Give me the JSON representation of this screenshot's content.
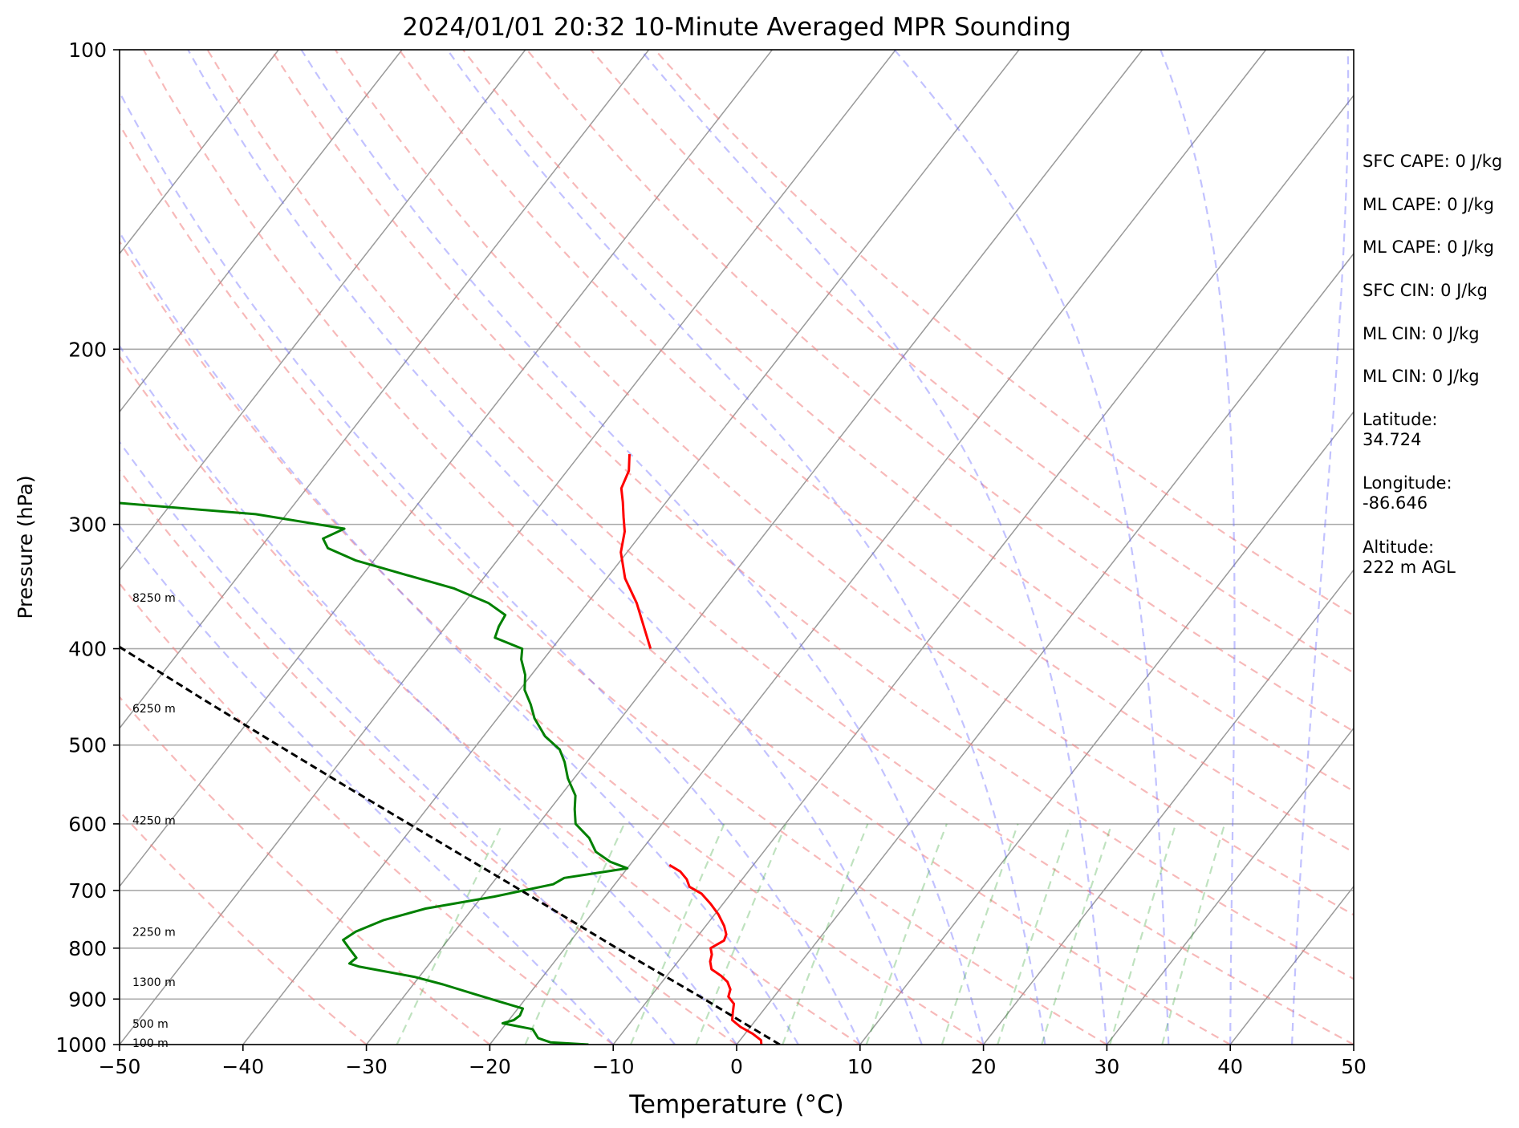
{
  "chart_data": {
    "type": "line",
    "title": "2024/01/01 20:32 10-Minute Averaged MPR Sounding",
    "xlabel": "Temperature (°C)",
    "ylabel": "Pressure (hPa)",
    "xlim": [
      -50,
      50
    ],
    "ylim": [
      1000,
      100
    ],
    "y_scale": "log",
    "skew": true,
    "x_ticks": [
      -50,
      -40,
      -30,
      -20,
      -10,
      0,
      10,
      20,
      30,
      40,
      50
    ],
    "x_tick_labels": [
      "−50",
      "−40",
      "−30",
      "−20",
      "−10",
      "0",
      "10",
      "20",
      "30",
      "40",
      "50"
    ],
    "y_ticks": [
      1000,
      900,
      800,
      700,
      600,
      500,
      400,
      300,
      200,
      100
    ],
    "y_tick_labels": [
      "1000",
      "900",
      "800",
      "700",
      "600",
      "500",
      "400",
      "300",
      "200",
      "100"
    ],
    "grid": true,
    "isotherm_values": [
      -100,
      -90,
      -80,
      -70,
      -60,
      -50,
      -40,
      -30,
      -20,
      -10,
      0,
      10,
      20,
      30,
      40,
      50,
      60
    ],
    "dry_adiabat_theta_c": [
      -30,
      -20,
      -10,
      0,
      10,
      20,
      30,
      40,
      50,
      60,
      70,
      80,
      90,
      100,
      110,
      120
    ],
    "moist_adiabat_start_c": [
      -10,
      -5,
      0,
      5,
      10,
      15,
      20,
      25,
      30,
      35,
      40,
      45
    ],
    "mixing_ratio_g_kg": [
      0.4,
      1,
      2,
      3,
      5,
      8,
      12,
      16,
      20,
      28,
      36
    ],
    "height_labels": [
      {
        "text": "100 m",
        "p": 998
      },
      {
        "text": "500 m",
        "p": 955
      },
      {
        "text": "1300 m",
        "p": 867
      },
      {
        "text": "2250 m",
        "p": 772
      },
      {
        "text": "4250 m",
        "p": 596
      },
      {
        "text": "6250 m",
        "p": 460
      },
      {
        "text": "8250 m",
        "p": 356
      }
    ],
    "series": [
      {
        "name": "",
        "role": "temperature",
        "color": "#ff0000",
        "points": [
          [
            1000,
            2.0
          ],
          [
            990,
            1.7
          ],
          [
            975,
            0.6
          ],
          [
            960,
            -0.8
          ],
          [
            945,
            -1.9
          ],
          [
            930,
            -2.3
          ],
          [
            910,
            -2.8
          ],
          [
            895,
            -3.7
          ],
          [
            880,
            -4.0
          ],
          [
            865,
            -4.7
          ],
          [
            853,
            -5.6
          ],
          [
            840,
            -6.8
          ],
          [
            825,
            -7.4
          ],
          [
            812,
            -7.7
          ],
          [
            800,
            -8.2
          ],
          [
            786,
            -7.6
          ],
          [
            775,
            -7.8
          ],
          [
            760,
            -8.5
          ],
          [
            740,
            -9.7
          ],
          [
            722,
            -11.0
          ],
          [
            705,
            -12.4
          ],
          [
            694,
            -13.8
          ],
          [
            682,
            -14.5
          ],
          [
            670,
            -15.5
          ],
          [
            660,
            -16.8
          ]
        ]
      },
      {
        "name": "",
        "role": "temperature-upper",
        "color": "#ff0000",
        "points": [
          [
            400,
            -32.0
          ],
          [
            360,
            -36.0
          ],
          [
            340,
            -38.5
          ],
          [
            320,
            -40.5
          ],
          [
            305,
            -41.5
          ],
          [
            295,
            -42.5
          ],
          [
            285,
            -43.5
          ],
          [
            276,
            -44.5
          ],
          [
            265,
            -45.0
          ],
          [
            255,
            -46.0
          ]
        ]
      },
      {
        "name": "",
        "role": "dewpoint",
        "color": "#008000",
        "points": [
          [
            1000,
            -12.0
          ],
          [
            995,
            -15.2
          ],
          [
            985,
            -16.5
          ],
          [
            965,
            -17.5
          ],
          [
            952,
            -20.3
          ],
          [
            945,
            -19.6
          ],
          [
            935,
            -19.4
          ],
          [
            920,
            -19.6
          ],
          [
            905,
            -22.0
          ],
          [
            890,
            -24.4
          ],
          [
            870,
            -27.6
          ],
          [
            855,
            -30.4
          ],
          [
            835,
            -35.5
          ],
          [
            829,
            -36.5
          ],
          [
            818,
            -36.3
          ],
          [
            800,
            -37.5
          ],
          [
            785,
            -38.5
          ],
          [
            770,
            -38.0
          ],
          [
            750,
            -36.5
          ],
          [
            730,
            -33.8
          ],
          [
            710,
            -29.0
          ],
          [
            690,
            -25.0
          ],
          [
            680,
            -24.5
          ],
          [
            665,
            -20.0
          ],
          [
            655,
            -21.8
          ],
          [
            640,
            -23.6
          ],
          [
            620,
            -25.0
          ],
          [
            600,
            -27.0
          ],
          [
            580,
            -28.0
          ],
          [
            562,
            -28.8
          ],
          [
            540,
            -30.5
          ],
          [
            520,
            -31.8
          ],
          [
            505,
            -33.0
          ],
          [
            490,
            -35.0
          ],
          [
            470,
            -37.0
          ],
          [
            455,
            -38.2
          ],
          [
            440,
            -39.6
          ],
          [
            425,
            -40.5
          ],
          [
            410,
            -41.8
          ],
          [
            400,
            -42.4
          ],
          [
            390,
            -45.3
          ],
          [
            380,
            -45.7
          ],
          [
            370,
            -45.9
          ],
          [
            360,
            -48.0
          ],
          [
            348,
            -51.7
          ],
          [
            336,
            -57.0
          ],
          [
            326,
            -61.5
          ],
          [
            317,
            -64.5
          ],
          [
            310,
            -65.5
          ],
          [
            303,
            -64.4
          ],
          [
            293,
            -72.5
          ],
          [
            284,
            -86.7
          ],
          [
            283,
            -100.0
          ]
        ]
      },
      {
        "name": "",
        "role": "parcel",
        "color": "#000000",
        "dashed": true,
        "points": [
          [
            1000,
            3.5
          ],
          [
            950,
            -0.9
          ],
          [
            900,
            -5.5
          ],
          [
            850,
            -10.5
          ],
          [
            800,
            -15.8
          ],
          [
            750,
            -21.3
          ],
          [
            700,
            -27.2
          ],
          [
            650,
            -33.6
          ],
          [
            600,
            -40.5
          ],
          [
            550,
            -48.0
          ],
          [
            500,
            -56.1
          ],
          [
            450,
            -65.0
          ],
          [
            400,
            -74.8
          ],
          [
            350,
            -85.8
          ],
          [
            300,
            -98.4
          ],
          [
            283,
            -103.0
          ]
        ]
      }
    ]
  },
  "info_panel": {
    "lines": [
      "SFC CAPE: 0 J/kg",
      "ML CAPE: 0 J/kg",
      "ML CAPE: 0 J/kg",
      "SFC CIN: 0 J/kg",
      "ML CIN: 0 J/kg",
      "ML CIN: 0 J/kg"
    ],
    "latitude_label": "Latitude:",
    "latitude_value": "34.724",
    "longitude_label": "Longitude:",
    "longitude_value": "-86.646",
    "altitude_label": "Altitude:",
    "altitude_value": "222 m AGL"
  },
  "colors": {
    "temperature": "#ff0000",
    "dewpoint": "#008000",
    "parcel": "#000000",
    "dry_adiabat": "#f08080",
    "moist_adiabat": "#6666ff",
    "mixing_ratio": "#2ca02c",
    "isotherm": "#9a9a9a",
    "isobar": "#aaaaaa"
  }
}
